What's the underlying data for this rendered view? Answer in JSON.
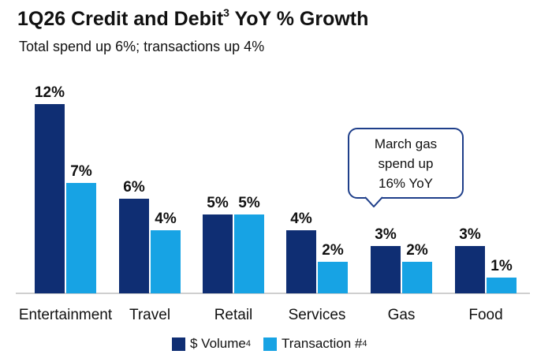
{
  "header": {
    "title": "1Q26 Credit and Debit",
    "title_sup": "3",
    "title_suffix": "YoY % Growth",
    "subtitle": "Total spend up 6%; transactions up 4%"
  },
  "callout": {
    "text": "March gas\nspend up\n16% YoY"
  },
  "legend": {
    "items": [
      {
        "label": "$ Volume",
        "sup": "4",
        "color": "#0f2e73"
      },
      {
        "label": "Transaction #",
        "sup": "4",
        "color": "#17a3e4"
      }
    ]
  },
  "chart_data": {
    "type": "bar",
    "categories": [
      "Entertainment",
      "Travel",
      "Retail",
      "Services",
      "Gas",
      "Food"
    ],
    "series": [
      {
        "name": "$ Volume",
        "values": [
          12,
          6,
          5,
          4,
          3,
          3
        ],
        "labels": [
          "12%",
          "6%",
          "5%",
          "4%",
          "3%",
          "3%"
        ],
        "color": "#0f2e73"
      },
      {
        "name": "Transaction #",
        "values": [
          7,
          4,
          5,
          2,
          2,
          1
        ],
        "labels": [
          "7%",
          "4%",
          "5%",
          "2%",
          "2%",
          "1%"
        ],
        "color": "#17a3e4"
      }
    ],
    "ylim": [
      0,
      12
    ],
    "title": "1Q26 Credit and Debit3 YoY % Growth",
    "subtitle": "Total spend up 6%; transactions up 4%",
    "xlabel": "",
    "ylabel": "",
    "grid": false,
    "legend_position": "bottom"
  }
}
